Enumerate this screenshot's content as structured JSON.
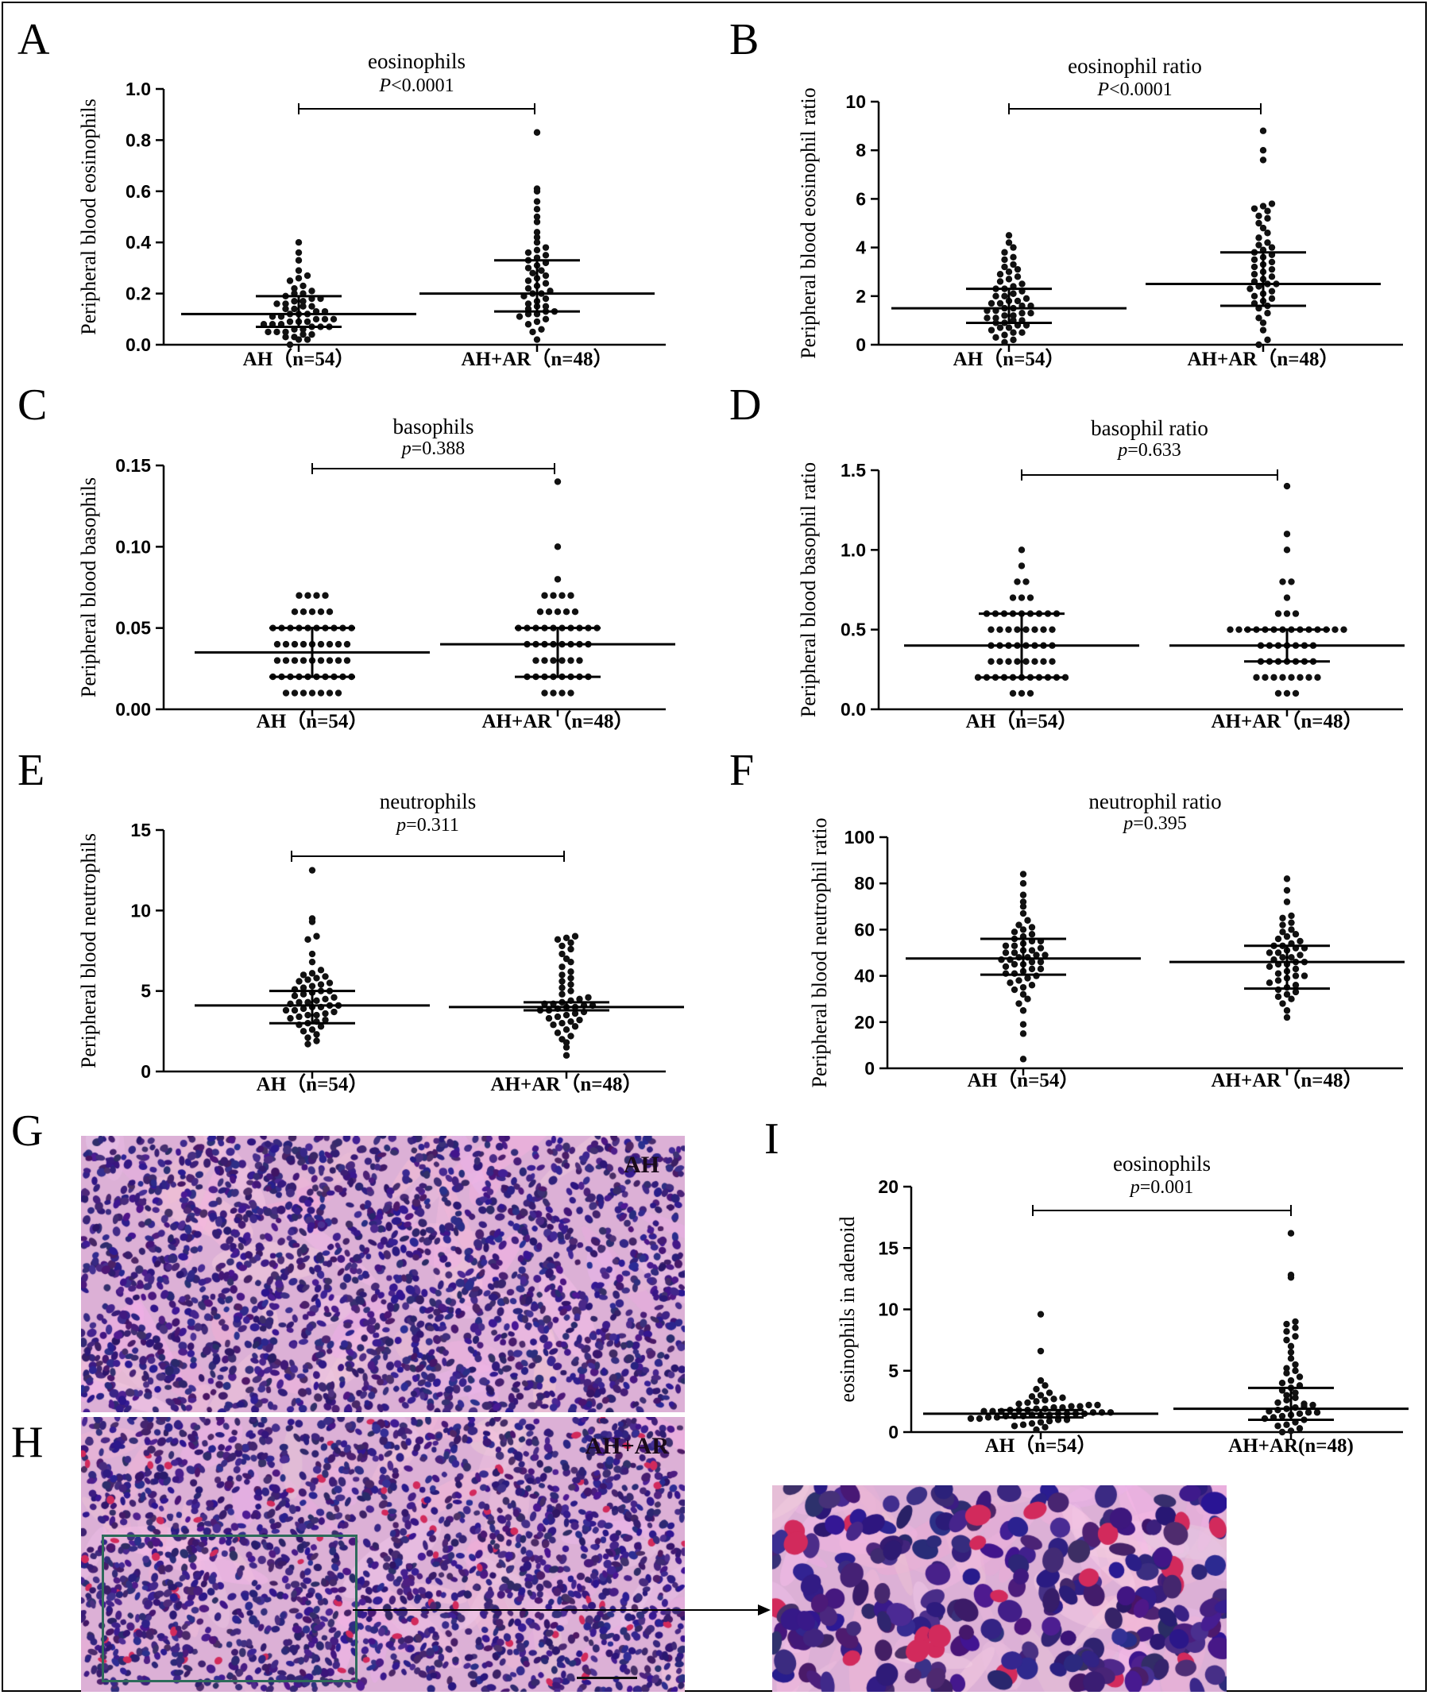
{
  "colors": {
    "dot": "#111111",
    "axis": "#000000",
    "tissue_base": "#d8a8d0",
    "nucleus": "#3a1f7a",
    "eosinophil": "#d2205a",
    "box": "#2e6b5a"
  },
  "panels": {
    "A": "A",
    "B": "B",
    "C": "C",
    "D": "D",
    "E": "E",
    "F": "F",
    "G": "G",
    "H": "H",
    "I": "I"
  },
  "images": {
    "G": {
      "label": "AH"
    },
    "H": {
      "label": "AH+AR"
    },
    "zoom_arrow": true
  },
  "chart_data": [
    {
      "id": "A",
      "type": "scatter",
      "title": "eosinophils",
      "stat_prefix": "P",
      "stat_text": "<0.0001",
      "ylabel": "Peripheral blood eosinophils",
      "ylim": [
        0,
        1.0
      ],
      "yticks": [
        "0.0",
        "0.2",
        "0.4",
        "0.6",
        "0.8",
        "1.0"
      ],
      "ytick_values": [
        0,
        0.2,
        0.4,
        0.6,
        0.8,
        1.0
      ],
      "categories": [
        "AH（n=54）",
        "AH+AR（n=48）"
      ],
      "bracket": true,
      "series": [
        {
          "values": [
            0.0,
            0.02,
            0.02,
            0.03,
            0.03,
            0.04,
            0.04,
            0.05,
            0.05,
            0.05,
            0.06,
            0.06,
            0.07,
            0.07,
            0.07,
            0.08,
            0.08,
            0.08,
            0.09,
            0.09,
            0.09,
            0.1,
            0.1,
            0.1,
            0.11,
            0.11,
            0.12,
            0.12,
            0.12,
            0.13,
            0.13,
            0.14,
            0.14,
            0.15,
            0.15,
            0.16,
            0.16,
            0.17,
            0.17,
            0.18,
            0.18,
            0.19,
            0.2,
            0.2,
            0.21,
            0.22,
            0.23,
            0.25,
            0.26,
            0.27,
            0.29,
            0.33,
            0.36,
            0.4
          ],
          "median": 0.12,
          "q1": 0.07,
          "q3": 0.19
        },
        {
          "values": [
            0.02,
            0.05,
            0.06,
            0.08,
            0.09,
            0.1,
            0.11,
            0.12,
            0.12,
            0.13,
            0.13,
            0.14,
            0.15,
            0.15,
            0.16,
            0.17,
            0.18,
            0.19,
            0.2,
            0.2,
            0.21,
            0.22,
            0.23,
            0.24,
            0.25,
            0.26,
            0.27,
            0.28,
            0.29,
            0.3,
            0.31,
            0.32,
            0.33,
            0.34,
            0.35,
            0.36,
            0.37,
            0.38,
            0.4,
            0.42,
            0.44,
            0.48,
            0.5,
            0.53,
            0.56,
            0.6,
            0.61,
            0.83
          ],
          "median": 0.2,
          "q1": 0.13,
          "q3": 0.33
        }
      ]
    },
    {
      "id": "B",
      "type": "scatter",
      "title": "eosinophil ratio",
      "stat_prefix": "P",
      "stat_text": "<0.0001",
      "ylabel": "Peripheral blood eosinophil ratio",
      "ylim": [
        0,
        10
      ],
      "yticks": [
        "0",
        "2",
        "4",
        "6",
        "8",
        "10"
      ],
      "ytick_values": [
        0,
        2,
        4,
        6,
        8,
        10
      ],
      "categories": [
        "AH（n=54）",
        "AH+AR（n=48）"
      ],
      "bracket": true,
      "series": [
        {
          "values": [
            0.1,
            0.2,
            0.3,
            0.4,
            0.5,
            0.5,
            0.6,
            0.7,
            0.7,
            0.8,
            0.8,
            0.9,
            0.9,
            1.0,
            1.0,
            1.1,
            1.1,
            1.2,
            1.2,
            1.3,
            1.3,
            1.4,
            1.4,
            1.5,
            1.5,
            1.6,
            1.6,
            1.7,
            1.7,
            1.8,
            1.8,
            1.9,
            2.0,
            2.0,
            2.1,
            2.2,
            2.3,
            2.3,
            2.4,
            2.5,
            2.6,
            2.7,
            2.8,
            2.9,
            3.0,
            3.1,
            3.2,
            3.3,
            3.5,
            3.6,
            3.8,
            4.0,
            4.2,
            4.5
          ],
          "median": 1.5,
          "q1": 0.9,
          "q3": 2.3
        },
        {
          "values": [
            0.0,
            0.2,
            0.6,
            0.9,
            1.1,
            1.3,
            1.5,
            1.6,
            1.7,
            1.8,
            1.9,
            2.0,
            2.1,
            2.2,
            2.3,
            2.4,
            2.5,
            2.5,
            2.6,
            2.7,
            2.8,
            2.9,
            3.0,
            3.1,
            3.2,
            3.3,
            3.4,
            3.5,
            3.6,
            3.7,
            3.8,
            3.9,
            4.0,
            4.1,
            4.2,
            4.4,
            4.6,
            4.8,
            5.0,
            5.2,
            5.3,
            5.5,
            5.6,
            5.7,
            5.8,
            7.6,
            8.0,
            8.8
          ],
          "median": 2.5,
          "q1": 1.6,
          "q3": 3.8
        }
      ]
    },
    {
      "id": "C",
      "type": "scatter",
      "title": "basophils",
      "stat_prefix": "p",
      "stat_text": "=0.388",
      "ylabel": "Peripheral blood basophils",
      "ylim": [
        0,
        0.15
      ],
      "yticks": [
        "0.00",
        "0.05",
        "0.10",
        "0.15"
      ],
      "ytick_values": [
        0,
        0.05,
        0.1,
        0.15
      ],
      "categories": [
        "AH（n=54）",
        "AH+AR（n=48）"
      ],
      "bracket": true,
      "series": [
        {
          "values": [
            0.01,
            0.01,
            0.01,
            0.01,
            0.01,
            0.01,
            0.01,
            0.02,
            0.02,
            0.02,
            0.02,
            0.02,
            0.02,
            0.02,
            0.02,
            0.02,
            0.02,
            0.03,
            0.03,
            0.03,
            0.03,
            0.03,
            0.03,
            0.03,
            0.03,
            0.03,
            0.04,
            0.04,
            0.04,
            0.04,
            0.04,
            0.04,
            0.04,
            0.04,
            0.04,
            0.05,
            0.05,
            0.05,
            0.05,
            0.05,
            0.05,
            0.05,
            0.05,
            0.05,
            0.05,
            0.06,
            0.06,
            0.06,
            0.06,
            0.06,
            0.07,
            0.07,
            0.07,
            0.07
          ],
          "median": 0.035,
          "q1": 0.02,
          "q3": 0.05
        },
        {
          "values": [
            0.01,
            0.01,
            0.01,
            0.01,
            0.02,
            0.02,
            0.02,
            0.02,
            0.02,
            0.02,
            0.02,
            0.02,
            0.03,
            0.03,
            0.03,
            0.03,
            0.03,
            0.03,
            0.04,
            0.04,
            0.04,
            0.04,
            0.04,
            0.04,
            0.04,
            0.04,
            0.05,
            0.05,
            0.05,
            0.05,
            0.05,
            0.05,
            0.05,
            0.05,
            0.05,
            0.05,
            0.06,
            0.06,
            0.06,
            0.06,
            0.06,
            0.07,
            0.07,
            0.07,
            0.07,
            0.08,
            0.1,
            0.14
          ],
          "median": 0.04,
          "q1": 0.02,
          "q3": 0.05
        }
      ]
    },
    {
      "id": "D",
      "type": "scatter",
      "title": "basophil ratio",
      "stat_prefix": "p",
      "stat_text": "=0.633",
      "ylabel": "Peripheral blood basophil ratio",
      "ylim": [
        0,
        1.5
      ],
      "yticks": [
        "0.0",
        "0.5",
        "1.0",
        "1.5"
      ],
      "ytick_values": [
        0,
        0.5,
        1.0,
        1.5
      ],
      "categories": [
        "AH（n=54）",
        "AH+AR（n=48）"
      ],
      "bracket": true,
      "series": [
        {
          "values": [
            0.1,
            0.1,
            0.1,
            0.2,
            0.2,
            0.2,
            0.2,
            0.2,
            0.2,
            0.2,
            0.2,
            0.2,
            0.2,
            0.2,
            0.3,
            0.3,
            0.3,
            0.3,
            0.3,
            0.3,
            0.3,
            0.3,
            0.4,
            0.4,
            0.4,
            0.4,
            0.4,
            0.4,
            0.4,
            0.4,
            0.5,
            0.5,
            0.5,
            0.5,
            0.5,
            0.5,
            0.5,
            0.5,
            0.6,
            0.6,
            0.6,
            0.6,
            0.6,
            0.6,
            0.6,
            0.6,
            0.6,
            0.7,
            0.7,
            0.7,
            0.8,
            0.8,
            0.9,
            1.0
          ],
          "median": 0.4,
          "q1": 0.2,
          "q3": 0.6
        },
        {
          "values": [
            0.1,
            0.1,
            0.1,
            0.2,
            0.2,
            0.2,
            0.2,
            0.2,
            0.2,
            0.2,
            0.2,
            0.3,
            0.3,
            0.3,
            0.3,
            0.3,
            0.3,
            0.3,
            0.4,
            0.4,
            0.4,
            0.4,
            0.4,
            0.4,
            0.4,
            0.5,
            0.5,
            0.5,
            0.5,
            0.5,
            0.5,
            0.5,
            0.5,
            0.5,
            0.5,
            0.5,
            0.5,
            0.5,
            0.5,
            0.6,
            0.6,
            0.6,
            0.7,
            0.8,
            0.8,
            1.0,
            1.1,
            1.4
          ],
          "median": 0.4,
          "q1": 0.3,
          "q3": 0.5
        }
      ]
    },
    {
      "id": "E",
      "type": "scatter",
      "title": "neutrophils",
      "stat_prefix": "p",
      "stat_text": "=0.311",
      "ylabel": "Peripheral blood neutrophils",
      "ylim": [
        0,
        15
      ],
      "yticks": [
        "0",
        "5",
        "10",
        "15"
      ],
      "ytick_values": [
        0,
        5,
        10,
        15
      ],
      "categories": [
        "AH（n=54）",
        "AH+AR（n=48）"
      ],
      "bracket": true,
      "series": [
        {
          "values": [
            1.7,
            1.9,
            2.1,
            2.3,
            2.5,
            2.6,
            2.8,
            2.9,
            3.0,
            3.1,
            3.2,
            3.3,
            3.4,
            3.5,
            3.5,
            3.6,
            3.7,
            3.8,
            3.8,
            3.9,
            4.0,
            4.0,
            4.1,
            4.1,
            4.2,
            4.3,
            4.3,
            4.4,
            4.5,
            4.6,
            4.7,
            4.8,
            4.9,
            5.0,
            5.0,
            5.1,
            5.2,
            5.3,
            5.4,
            5.5,
            5.6,
            5.7,
            5.8,
            5.9,
            6.0,
            6.1,
            6.3,
            6.8,
            7.3,
            8.2,
            8.4,
            9.3,
            9.5,
            12.5
          ],
          "median": 4.1,
          "q1": 3.0,
          "q3": 5.0
        },
        {
          "values": [
            1.0,
            1.5,
            1.8,
            2.0,
            2.2,
            2.4,
            2.6,
            2.8,
            2.9,
            3.0,
            3.1,
            3.2,
            3.3,
            3.4,
            3.5,
            3.6,
            3.7,
            3.8,
            3.8,
            3.9,
            4.0,
            4.0,
            4.1,
            4.1,
            4.2,
            4.2,
            4.3,
            4.4,
            4.5,
            4.6,
            4.8,
            5.0,
            5.2,
            5.4,
            5.6,
            5.8,
            6.0,
            6.2,
            6.5,
            6.8,
            7.0,
            7.3,
            7.6,
            7.8,
            8.0,
            8.2,
            8.3,
            8.4
          ],
          "median": 4.0,
          "q1": 3.8,
          "q3": 4.3
        }
      ]
    },
    {
      "id": "F",
      "type": "scatter",
      "title": "neutrophil ratio",
      "stat_prefix": "p",
      "stat_text": "=0.395",
      "ylabel": "Peripheral blood neutrophil ratio",
      "ylim": [
        0,
        100
      ],
      "yticks": [
        "0",
        "20",
        "40",
        "60",
        "80",
        "100"
      ],
      "ytick_values": [
        0,
        20,
        40,
        60,
        80,
        100
      ],
      "categories": [
        "AH（n=54）",
        "AH+AR（n=48）"
      ],
      "bracket": false,
      "series": [
        {
          "values": [
            4,
            15,
            19,
            25,
            28,
            30,
            32,
            34,
            35,
            36,
            37,
            38,
            39,
            40,
            41,
            41,
            42,
            43,
            43,
            44,
            45,
            45,
            46,
            46,
            47,
            47,
            48,
            48,
            49,
            49,
            50,
            50,
            51,
            51,
            52,
            53,
            53,
            54,
            55,
            55,
            56,
            57,
            58,
            59,
            60,
            61,
            62,
            64,
            67,
            70,
            72,
            75,
            80,
            84
          ],
          "median": 47.5,
          "q1": 40.5,
          "q3": 56
        },
        {
          "values": [
            22,
            25,
            28,
            30,
            31,
            32,
            33,
            34,
            35,
            36,
            37,
            38,
            39,
            40,
            40,
            41,
            42,
            43,
            44,
            45,
            45,
            46,
            46,
            47,
            48,
            48,
            49,
            50,
            50,
            51,
            52,
            52,
            53,
            53,
            54,
            55,
            56,
            57,
            58,
            59,
            60,
            62,
            63,
            65,
            66,
            72,
            77,
            82
          ],
          "median": 46,
          "q1": 34.5,
          "q3": 53
        }
      ]
    },
    {
      "id": "I",
      "type": "scatter",
      "title": "eosinophils",
      "stat_prefix": "p",
      "stat_text": "=0.001",
      "ylabel": "eosinophils in adenoid",
      "ylim": [
        0,
        20
      ],
      "yticks": [
        "0",
        "5",
        "10",
        "15",
        "20"
      ],
      "ytick_values": [
        0,
        5,
        10,
        15,
        20
      ],
      "categories": [
        "AH（n=54）",
        "AH+AR(n=48)"
      ],
      "bracket": true,
      "series": [
        {
          "values": [
            0.2,
            0.4,
            0.5,
            0.6,
            0.7,
            0.8,
            0.9,
            1.0,
            1.0,
            1.1,
            1.1,
            1.2,
            1.2,
            1.3,
            1.3,
            1.3,
            1.4,
            1.4,
            1.4,
            1.5,
            1.5,
            1.5,
            1.5,
            1.6,
            1.6,
            1.6,
            1.7,
            1.7,
            1.7,
            1.8,
            1.8,
            1.8,
            1.9,
            1.9,
            2.0,
            2.0,
            2.1,
            2.1,
            2.2,
            2.2,
            2.3,
            2.4,
            2.5,
            2.6,
            2.7,
            2.8,
            2.9,
            3.0,
            3.2,
            3.5,
            3.8,
            4.2,
            6.6,
            9.6
          ],
          "median": 1.5,
          "q1": 1.2,
          "q3": 1.8
        },
        {
          "values": [
            0.0,
            0.1,
            0.3,
            0.5,
            0.6,
            0.8,
            1.0,
            1.1,
            1.2,
            1.3,
            1.4,
            1.5,
            1.6,
            1.7,
            1.8,
            1.9,
            2.0,
            2.1,
            2.2,
            2.4,
            2.6,
            2.8,
            3.0,
            3.2,
            3.4,
            3.6,
            3.8,
            4.0,
            4.2,
            4.5,
            4.8,
            5.0,
            5.2,
            5.5,
            6.0,
            6.5,
            7.0,
            7.5,
            7.8,
            8.2,
            8.5,
            8.8,
            9.0,
            12.6,
            12.8,
            16.2,
            1.6,
            2.3
          ],
          "median": 1.9,
          "q1": 1.0,
          "q3": 3.6
        }
      ]
    }
  ]
}
